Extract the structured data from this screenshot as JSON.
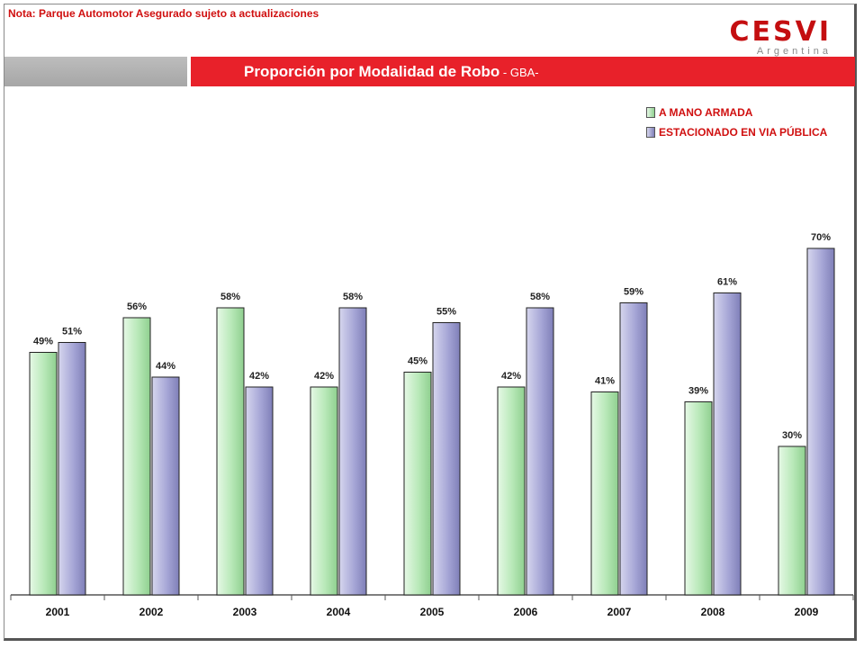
{
  "note": "Nota: Parque Automotor Asegurado sujeto a actualizaciones",
  "logo": {
    "main": "CESVI",
    "sub": "Argentina"
  },
  "header": {
    "title": "Proporción por Modalidad de Robo",
    "subtitle": " - GBA-"
  },
  "colors": {
    "accent_red": "#e8212a",
    "series_green": "#b7e8b7",
    "series_purple": "#a6a6d6"
  },
  "chart_data": {
    "type": "bar",
    "title": "Proporción por Modalidad de Robo - GBA-",
    "xlabel": "",
    "ylabel": "",
    "ylim": [
      0,
      100
    ],
    "grid": false,
    "legend_position": "top-right",
    "categories": [
      "2001",
      "2002",
      "2003",
      "2004",
      "2005",
      "2006",
      "2007",
      "2008",
      "2009"
    ],
    "series": [
      {
        "name": "A MANO ARMADA",
        "color": "#b7e8b7",
        "values": [
          49,
          56,
          58,
          42,
          45,
          42,
          41,
          39,
          30
        ],
        "labels": [
          "49%",
          "56%",
          "58%",
          "42%",
          "45%",
          "42%",
          "41%",
          "39%",
          "30%"
        ]
      },
      {
        "name": "ESTACIONADO EN VIA PÚBLICA",
        "color": "#a6a6d6",
        "values": [
          51,
          44,
          42,
          58,
          55,
          58,
          59,
          61,
          70
        ],
        "labels": [
          "51%",
          "44%",
          "42%",
          "58%",
          "55%",
          "58%",
          "59%",
          "61%",
          "70%"
        ]
      }
    ]
  }
}
